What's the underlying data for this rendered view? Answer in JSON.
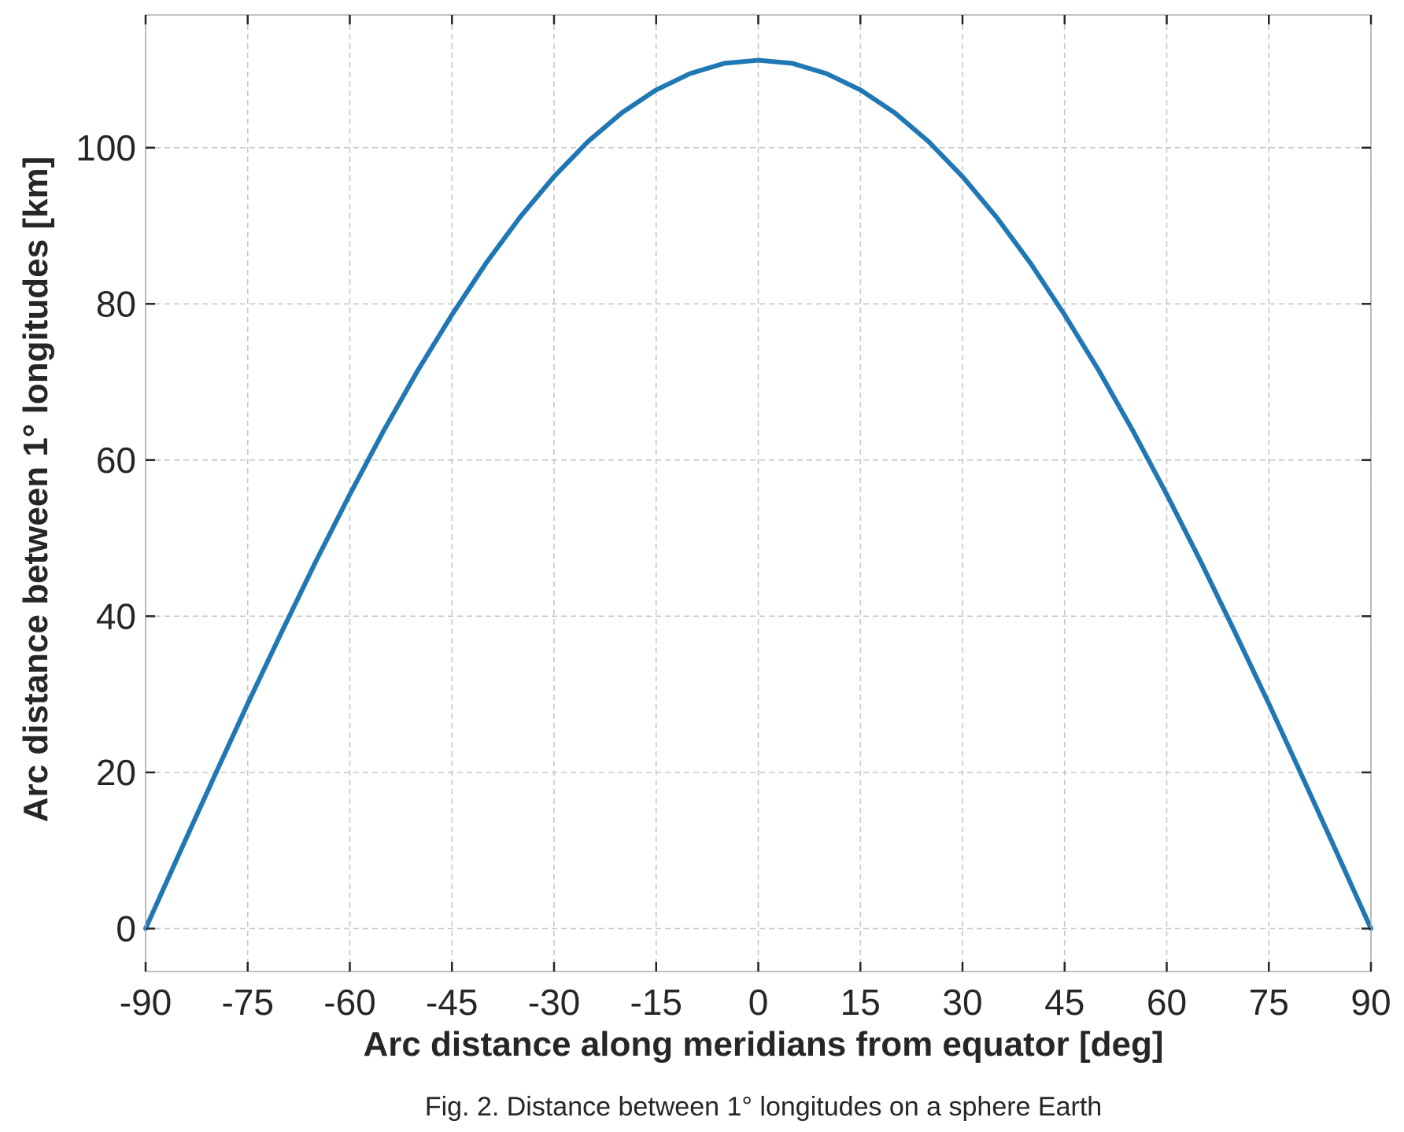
{
  "chart_data": {
    "type": "line",
    "xlabel": "Arc distance along meridians from equator [deg]",
    "ylabel": "Arc distance between 1° longitudes [km]",
    "caption": "Fig. 2. Distance between 1° longitudes on a sphere Earth",
    "xlim": [
      -90,
      90
    ],
    "ylim": [
      -5.5,
      117
    ],
    "x_ticks": [
      -90,
      -75,
      -60,
      -45,
      -30,
      -15,
      0,
      15,
      30,
      45,
      60,
      75,
      90
    ],
    "x_tick_labels": [
      "-90",
      "-75",
      "-60",
      "-45",
      "-30",
      "-15",
      "0",
      "15",
      "30",
      "45",
      "60",
      "75",
      "90"
    ],
    "y_ticks": [
      0,
      20,
      40,
      60,
      80,
      100
    ],
    "y_tick_labels": [
      "0",
      "20",
      "40",
      "60",
      "80",
      "100"
    ],
    "grid": true,
    "grid_style": "dashed",
    "series": [
      {
        "color": "#1f77b4",
        "x": [
          -90,
          -85,
          -80,
          -75,
          -70,
          -65,
          -60,
          -55,
          -50,
          -45,
          -40,
          -35,
          -30,
          -25,
          -20,
          -15,
          -10,
          -5,
          0,
          5,
          10,
          15,
          20,
          25,
          30,
          35,
          40,
          45,
          50,
          55,
          60,
          65,
          70,
          75,
          80,
          85,
          90
        ],
        "y": [
          0,
          9.7,
          19.3,
          28.8,
          38.0,
          47.0,
          55.6,
          63.8,
          71.5,
          78.6,
          85.2,
          91.1,
          96.3,
          100.8,
          104.5,
          107.4,
          109.5,
          110.8,
          111.2,
          110.8,
          109.5,
          107.4,
          104.5,
          100.8,
          96.3,
          91.1,
          85.2,
          78.6,
          71.5,
          63.8,
          55.6,
          47.0,
          38.0,
          28.8,
          19.3,
          9.7,
          0
        ]
      }
    ],
    "colors": {
      "line": "#1f77b4",
      "grid": "#c8c8c8",
      "text": "#262626",
      "spine": "#b0b0b0",
      "tick": "#262626"
    }
  }
}
